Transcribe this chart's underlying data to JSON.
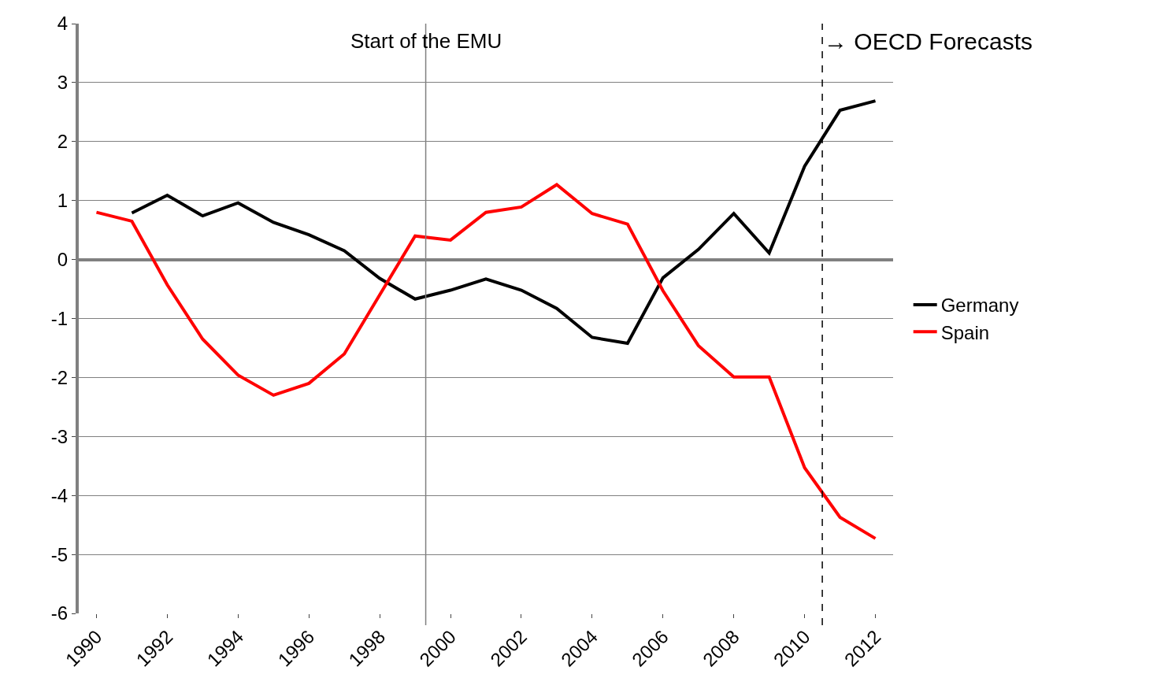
{
  "chart_data": {
    "type": "line",
    "x": [
      1990,
      1991,
      1992,
      1993,
      1994,
      1995,
      1996,
      1997,
      1998,
      1999,
      2000,
      2001,
      2002,
      2003,
      2004,
      2005,
      2006,
      2007,
      2008,
      2009,
      2010,
      2011,
      2012
    ],
    "series": [
      {
        "name": "Germany",
        "color": "#000000",
        "values": [
          null,
          0.79,
          1.09,
          0.74,
          0.96,
          0.63,
          0.42,
          0.15,
          -0.32,
          -0.67,
          -0.52,
          -0.33,
          -0.52,
          -0.83,
          -1.32,
          -1.42,
          -0.31,
          0.17,
          0.78,
          0.11,
          1.58,
          2.53,
          2.69
        ]
      },
      {
        "name": "Spain",
        "color": "#ff0000",
        "values": [
          0.8,
          0.65,
          -0.43,
          -1.35,
          -1.96,
          -2.3,
          -2.1,
          -1.6,
          -0.6,
          0.4,
          0.33,
          0.8,
          0.89,
          1.27,
          0.78,
          0.6,
          -0.53,
          -1.46,
          -1.99,
          -1.99,
          -3.53,
          -4.37,
          -4.73
        ]
      }
    ],
    "xlim": [
      1989.5,
      2012.5
    ],
    "xticks": [
      1990,
      1992,
      1994,
      1996,
      1998,
      2000,
      2002,
      2004,
      2006,
      2008,
      2010,
      2012
    ],
    "ylim": [
      -6,
      4
    ],
    "yticks": [
      -6,
      -5,
      -4,
      -3,
      -2,
      -1,
      0,
      1,
      2,
      3,
      4
    ],
    "grid": "y",
    "legend": "right",
    "marker": "none",
    "line_style": "solid",
    "ref_lines": [
      {
        "axis": "x",
        "value": 1999.3,
        "label": "Start of the EMU",
        "color": "#808080",
        "line_style": "solid"
      },
      {
        "axis": "x",
        "value": 2010.5,
        "label": "→ OECD Forecasts",
        "color": "#000000",
        "line_style": "dashed"
      }
    ]
  }
}
